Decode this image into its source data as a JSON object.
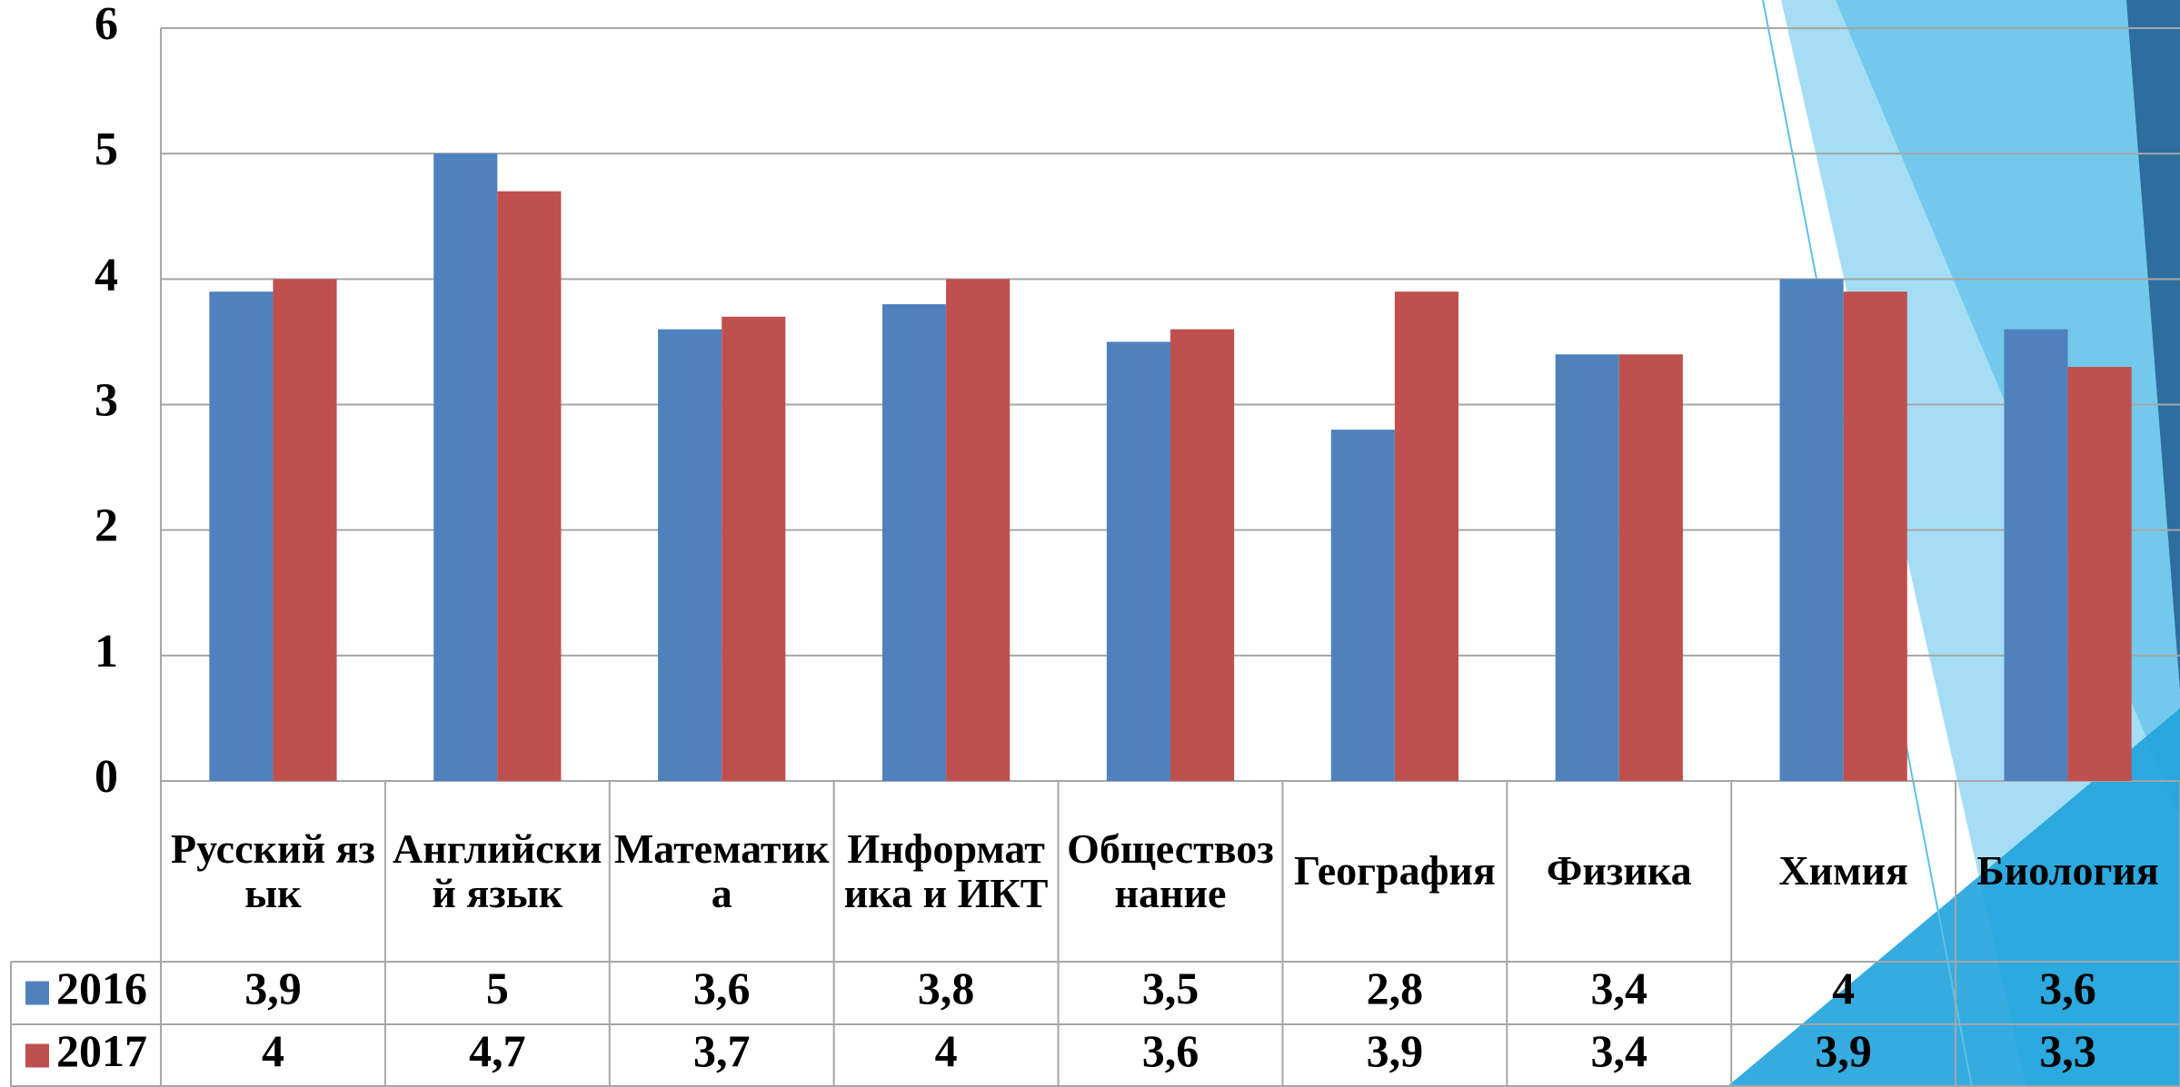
{
  "chart_data": {
    "type": "bar",
    "categories": [
      "Русский язык",
      "Английский язык",
      "Математика",
      "Информатика и ИКТ",
      "Обществознание",
      "География",
      "Физика",
      "Химия",
      "Биология"
    ],
    "series": [
      {
        "name": "2016",
        "color": "#4f81bd",
        "values": [
          3.9,
          5,
          3.6,
          3.8,
          3.5,
          2.8,
          3.4,
          4,
          3.6
        ],
        "value_labels": [
          "3,9",
          "5",
          "3,6",
          "3,8",
          "3,5",
          "2,8",
          "3,4",
          "4",
          "3,6"
        ]
      },
      {
        "name": "2017",
        "color": "#c0504d",
        "values": [
          4,
          4.7,
          3.7,
          4,
          3.6,
          3.9,
          3.4,
          3.9,
          3.3
        ],
        "value_labels": [
          "4",
          "4,7",
          "3,7",
          "4",
          "3,6",
          "3,9",
          "3,4",
          "3,9",
          "3,3"
        ]
      }
    ],
    "ylim": [
      0,
      6
    ],
    "yticks": [
      0,
      1,
      2,
      3,
      4,
      5,
      6
    ],
    "grid": true
  }
}
